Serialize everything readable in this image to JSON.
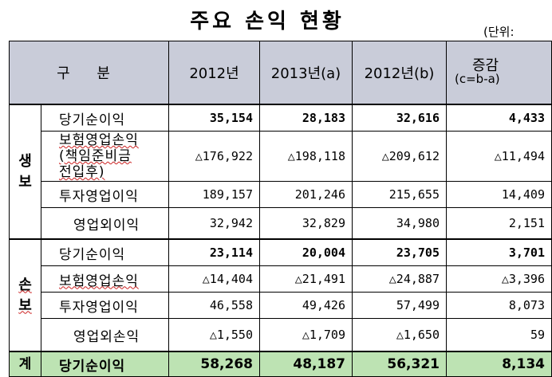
{
  "title": "주요 손익 현황",
  "unit_label": "(단위:",
  "header": {
    "gubun": "구 분",
    "col_2012": "2012년",
    "col_2013a": "2013년(a)",
    "col_2012b": "2012년(b)",
    "col_change_line1": "증감",
    "col_change_line2": "(c=b-a)"
  },
  "groups": [
    {
      "name": "생\n보",
      "rows": [
        {
          "label": "당기순이익",
          "v2012": "35,154",
          "v2013a": "28,183",
          "v2012b": "32,616",
          "change": "4,433"
        },
        {
          "label": "보험영업손익\n(책임준비금\n전입후)",
          "v2012": "△176,922",
          "v2013a": "△198,118",
          "v2012b": "△209,612",
          "change": "△11,494"
        },
        {
          "label": "투자영업이익",
          "v2012": "189,157",
          "v2013a": "201,246",
          "v2012b": "215,655",
          "change": "14,409"
        },
        {
          "label": "영업외이익",
          "v2012": "32,942",
          "v2013a": "32,829",
          "v2012b": "34,980",
          "change": "2,151"
        }
      ]
    },
    {
      "name": "손\n보",
      "rows": [
        {
          "label": "당기순이익",
          "v2012": "23,114",
          "v2013a": "20,004",
          "v2012b": "23,705",
          "change": "3,701"
        },
        {
          "label": "보험영업손익",
          "v2012": "△14,404",
          "v2013a": "△21,491",
          "v2012b": "△24,887",
          "change": "△3,396"
        },
        {
          "label": "투자영업이익",
          "v2012": "46,558",
          "v2013a": "49,426",
          "v2012b": "57,499",
          "change": "8,073"
        },
        {
          "label": "영업외손익",
          "v2012": "△1,550",
          "v2013a": "△1,709",
          "v2012b": "△1,650",
          "change": "59"
        }
      ]
    }
  ],
  "total": {
    "name": "계",
    "label": "당기순이익",
    "v2012": "58,268",
    "v2013a": "48,187",
    "v2012b": "56,321",
    "change": "8,134"
  }
}
